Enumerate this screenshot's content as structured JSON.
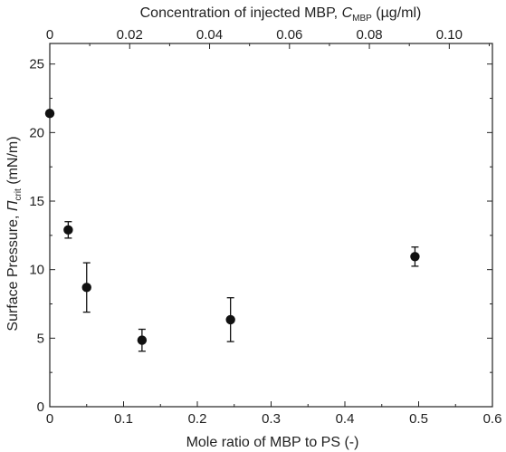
{
  "chart_data": {
    "type": "scatter",
    "title": "",
    "xlabel": "Mole ratio of MBP to PS (-)",
    "ylabel_prefix": "Surface Pressure, ",
    "ylabel_symbol": "Π",
    "ylabel_sub": "crit",
    "ylabel_suffix": " (mN/m)",
    "x2label_prefix": "Concentration of injected MBP, ",
    "x2label_symbol": "C",
    "x2label_sub": "MBP",
    "x2label_suffix": " (µg/ml)",
    "xlim": [
      0,
      0.6
    ],
    "ylim": [
      0,
      26.5
    ],
    "x2lim": [
      0,
      0.1108
    ],
    "xticks": [
      0,
      0.1,
      0.2,
      0.3,
      0.4,
      0.5,
      0.6
    ],
    "xtick_labels": [
      "0",
      "0.1",
      "0.2",
      "0.3",
      "0.4",
      "0.5",
      "0.6"
    ],
    "yticks": [
      0,
      5,
      10,
      15,
      20,
      25
    ],
    "ytick_labels": [
      "0",
      "5",
      "10",
      "15",
      "20",
      "25"
    ],
    "x2ticks": [
      0,
      0.02,
      0.04,
      0.06,
      0.08,
      0.1
    ],
    "x2tick_labels": [
      "0",
      "0.02",
      "0.04",
      "0.06",
      "0.08",
      "0.10"
    ],
    "grid": false,
    "points": [
      {
        "x": 0.0,
        "y": 21.4,
        "err": 0
      },
      {
        "x": 0.025,
        "y": 12.9,
        "err": 0.6
      },
      {
        "x": 0.05,
        "y": 8.7,
        "err": 1.8
      },
      {
        "x": 0.125,
        "y": 4.85,
        "err": 0.8
      },
      {
        "x": 0.245,
        "y": 6.35,
        "err": 1.6
      },
      {
        "x": 0.495,
        "y": 10.95,
        "err": 0.7
      }
    ],
    "marker_color": "#111111"
  }
}
